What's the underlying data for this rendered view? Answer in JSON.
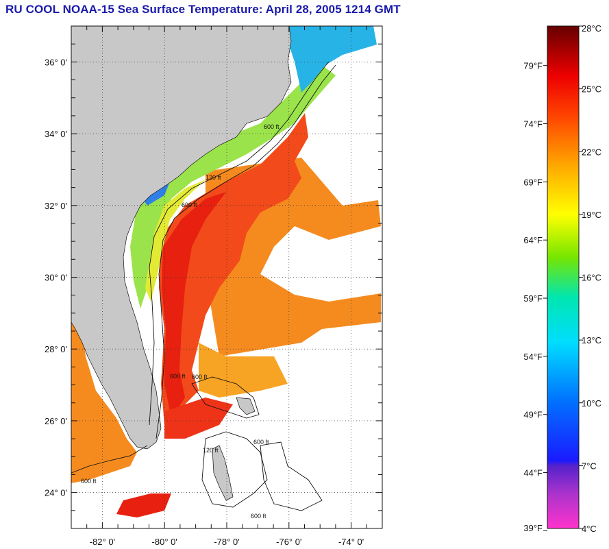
{
  "title": "RU COOL  NOAA-15  Sea Surface Temperature:  April 28, 2005 1214 GMT",
  "map": {
    "lat_labels": [
      "36° 0'",
      "34° 0'",
      "32° 0'",
      "30° 0'",
      "28° 0'",
      "26° 0'",
      "24° 0'"
    ],
    "lat_values": [
      36,
      34,
      32,
      30,
      28,
      26,
      24
    ],
    "lon_labels": [
      "-82° 0'",
      "-80° 0'",
      "-78° 0'",
      "-76° 0'",
      "-74° 0'"
    ],
    "lon_values": [
      -82,
      -80,
      -78,
      -76,
      -74
    ],
    "lat_range": [
      23,
      37
    ],
    "lon_range": [
      -83,
      -73
    ],
    "grid": "dotted",
    "land_color": "#c8c8c8",
    "cloud_color": "#ffffff",
    "contour_labels": [
      "600 ft",
      "120 ft",
      "600 ft",
      "600 ft",
      "600 ft",
      "600 ft",
      "600 ft",
      "120 ft",
      "600 ft"
    ]
  },
  "colorbar": {
    "celsius_labels": [
      "28°C",
      "25°C",
      "22°C",
      "19°C",
      "16°C",
      "13°C",
      "10°C",
      "7°C",
      "4°C"
    ],
    "celsius_values": [
      28,
      25,
      22,
      19,
      16,
      13,
      10,
      7,
      4
    ],
    "fahrenheit_labels": [
      "79°F",
      "74°F",
      "69°F",
      "64°F",
      "59°F",
      "54°F",
      "49°F",
      "44°F",
      "39°F"
    ],
    "fahrenheit_values": [
      79,
      74,
      69,
      64,
      59,
      54,
      49,
      44,
      39
    ],
    "range_c": [
      4,
      28
    ],
    "stops": [
      "#ff33cc",
      "#9933cc",
      "#1a1aff",
      "#0066ff",
      "#00ccff",
      "#00e6b8",
      "#66e600",
      "#ffff00",
      "#ffaa00",
      "#ff3300",
      "#cc0000",
      "#660000"
    ]
  }
}
